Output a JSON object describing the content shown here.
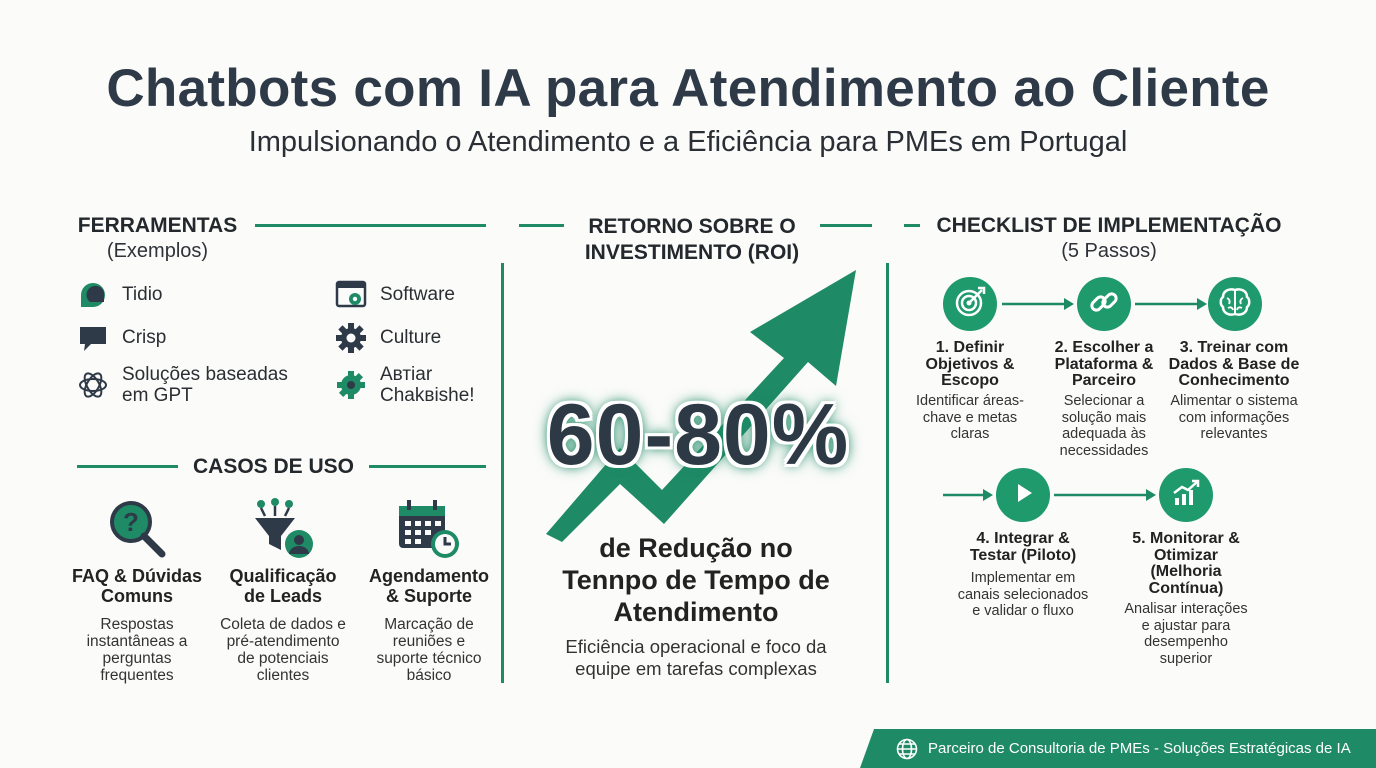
{
  "header": {
    "title": "Chatbots com IA para Atendimento ao Cliente",
    "subtitle": "Impulsionando o Atendimento e a Eficiência para PMEs em Portugal"
  },
  "tools": {
    "title": "FERRAMENTAS",
    "subtitle": "(Exemplos)",
    "items": [
      {
        "label": "Tidio",
        "icon": "chat-bubble-icon"
      },
      {
        "label": "Software",
        "icon": "software-window-icon"
      },
      {
        "label": "Crisp",
        "icon": "message-icon"
      },
      {
        "label": "Culture",
        "icon": "gear-icon"
      },
      {
        "label_line1": "Soluções baseadas",
        "label_line2": "em GPT",
        "icon": "gpt-knot-icon"
      },
      {
        "label_line1": "Aвтiar",
        "label_line2": "Chakвishe!",
        "icon": "gear-bot-icon"
      }
    ]
  },
  "use_cases": {
    "title": "CASOS DE USO",
    "items": [
      {
        "title_line1": "FAQ & Dúvidas",
        "title_line2": "Comuns",
        "desc": [
          "Respostas",
          "instantâneas a",
          "perguntas",
          "frequentes"
        ],
        "icon": "question-search-icon"
      },
      {
        "title_line1": "Qualificação",
        "title_line2": "de Leads",
        "desc": [
          "Coleta de dados e",
          "pré-atendimento",
          "de potenciais",
          "clientes"
        ],
        "icon": "funnel-user-icon"
      },
      {
        "title_line1": "Agendamento",
        "title_line2": "& Suporte",
        "desc": [
          "Marcação de",
          "reuniões e",
          "suporte técnico",
          "básico"
        ],
        "icon": "calendar-clock-icon"
      }
    ]
  },
  "roi": {
    "title_line1": "RETORNO SOBRE O",
    "title_line2": "INVESTIMENTO (ROI)",
    "value": "60-80%",
    "main_line1": "de Redução no",
    "main_line2": "Tennpo de Tempo de",
    "main_line3": "Atendimento",
    "sub_line1": "Eficiência operacional e foco da",
    "sub_line2": "equipe em tarefas complexas"
  },
  "checklist": {
    "title": "CHECKLIST DE IMPLEMENTAÇÃO",
    "subtitle": "(5 Passos)",
    "steps": [
      {
        "title": [
          "1. Definir",
          "Objetivos &",
          "Escopo"
        ],
        "desc": [
          "Identificar áreas-",
          "chave e metas",
          "claras"
        ],
        "icon": "target-icon"
      },
      {
        "title": [
          "2. Escolher a",
          "Plataforma &",
          "Parceiro"
        ],
        "desc": [
          "Selecionar a",
          "solução mais",
          "adequada às",
          "necessidades"
        ],
        "icon": "link-icon"
      },
      {
        "title": [
          "3. Treinar com",
          "Dados & Base de",
          "Conhecimento"
        ],
        "desc": [
          "Alimentar o sistema",
          "com informações",
          "relevantes"
        ],
        "icon": "brain-icon"
      },
      {
        "title": [
          "4. Integrar &",
          "Testar (Piloto)"
        ],
        "desc": [
          "Implementar em",
          "canais selecionados",
          "e validar o fluxo"
        ],
        "icon": "play-icon"
      },
      {
        "title": [
          "5. Monitorar &",
          "Otimizar",
          "(Melhoria",
          "Contínua)"
        ],
        "desc": [
          "Analisar interações",
          "e ajustar para",
          "desempenho",
          "superior"
        ],
        "icon": "chart-up-icon"
      }
    ]
  },
  "footer": {
    "text": "Parceiro de Consultoria de PMEs - Soluções Estratégicas de IA",
    "icon": "globe-icon"
  },
  "colors": {
    "accent": "#1f8a66",
    "title": "#2e3a47",
    "background": "#fbfbfa"
  }
}
